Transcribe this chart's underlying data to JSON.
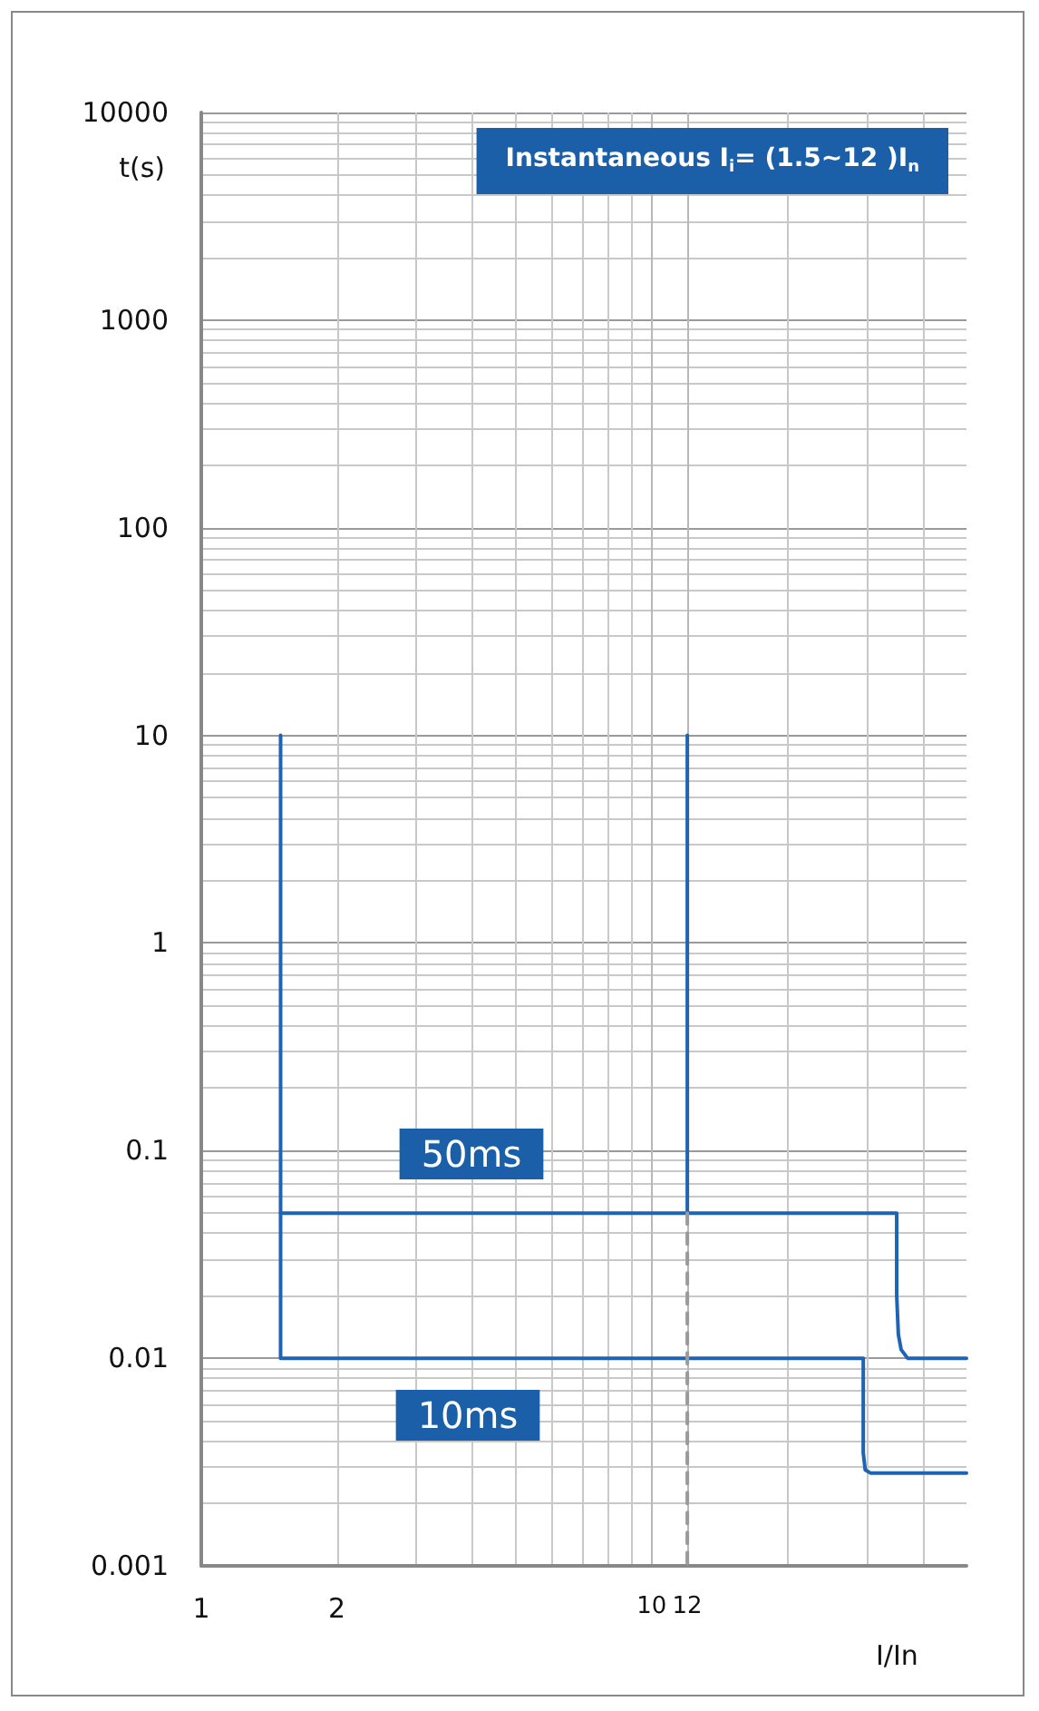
{
  "chart_data": {
    "type": "line",
    "title": "Instantaneous I$_{i}$= (1.5~12 )I$_{n}$",
    "xlabel": "I/In",
    "ylabel": "t(s)",
    "log": "xy",
    "xlim": [
      1,
      50
    ],
    "ylim": [
      0.001,
      10000
    ],
    "xticks": [
      1,
      2,
      10,
      12
    ],
    "yticks": [
      0.001,
      0.01,
      0.1,
      1,
      10,
      100,
      1000,
      10000
    ],
    "grid": true,
    "marker": "none",
    "series": [
      {
        "color": "#1f64b4",
        "x": [
          1.5,
          1.5,
          35,
          35,
          35.3,
          35.8,
          37,
          50
        ],
        "values": [
          10,
          0.05,
          0.05,
          0.02,
          0.013,
          0.011,
          0.01,
          0.01
        ]
      },
      {
        "color": "#1f64b4",
        "x": [
          1.5,
          1.5,
          29.5,
          29.5,
          29.8,
          30.6,
          50
        ],
        "values": [
          0.05,
          0.01,
          0.01,
          0.0035,
          0.0029,
          0.0028,
          0.0028
        ]
      },
      {
        "color": "#1f64b4",
        "x": [
          12,
          12
        ],
        "values": [
          10,
          0.05
        ]
      },
      {
        "color": "#9a9a9a",
        "line_style": "dashed",
        "x": [
          12,
          12
        ],
        "values": [
          0.05,
          0.001
        ]
      }
    ],
    "annotations": [
      "50ms",
      "10ms"
    ]
  }
}
